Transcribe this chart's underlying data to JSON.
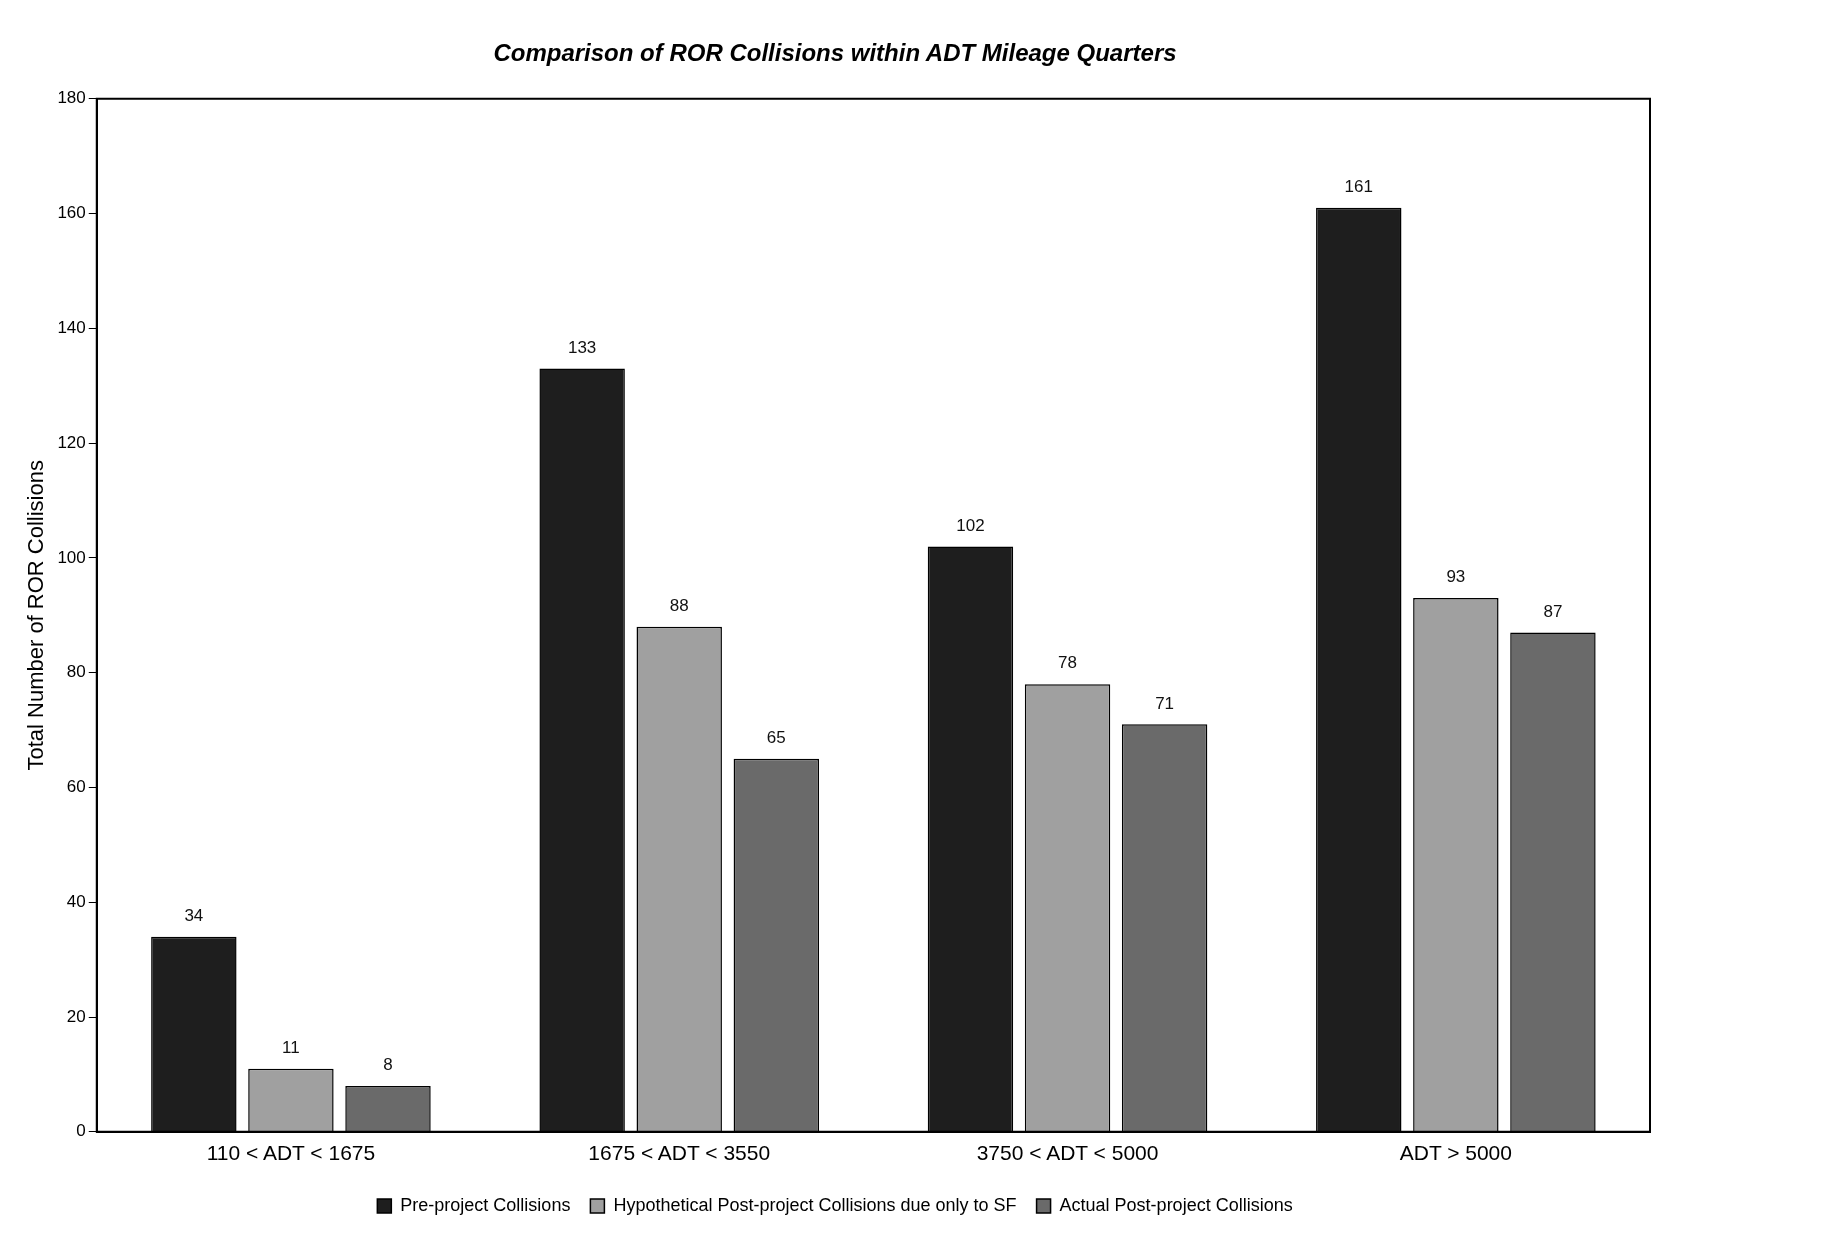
{
  "chart_data": {
    "type": "bar",
    "title": "Comparison of ROR Collisions within ADT Mileage Quarters",
    "ylabel": "Total Number of ROR Collisions",
    "categories": [
      "110 < ADT < 1675",
      "1675 < ADT < 3550",
      "3750 < ADT < 5000",
      "ADT > 5000"
    ],
    "series": [
      {
        "name": "Pre-project Collisions",
        "color": "#1e1e1e",
        "values": [
          34,
          133,
          102,
          161
        ]
      },
      {
        "name": "Hypothetical Post-project Collisions due only to SF",
        "color": "#a0a0a0",
        "values": [
          11,
          88,
          78,
          93
        ]
      },
      {
        "name": "Actual Post-project Collisions",
        "color": "#6a6a6a",
        "values": [
          8,
          65,
          71,
          87
        ]
      }
    ],
    "ylim": [
      0,
      180
    ],
    "yticks": [
      0,
      20,
      40,
      60,
      80,
      100,
      120,
      140,
      160,
      180
    ],
    "grid": false,
    "legend": "bottom",
    "data_labels": true
  }
}
